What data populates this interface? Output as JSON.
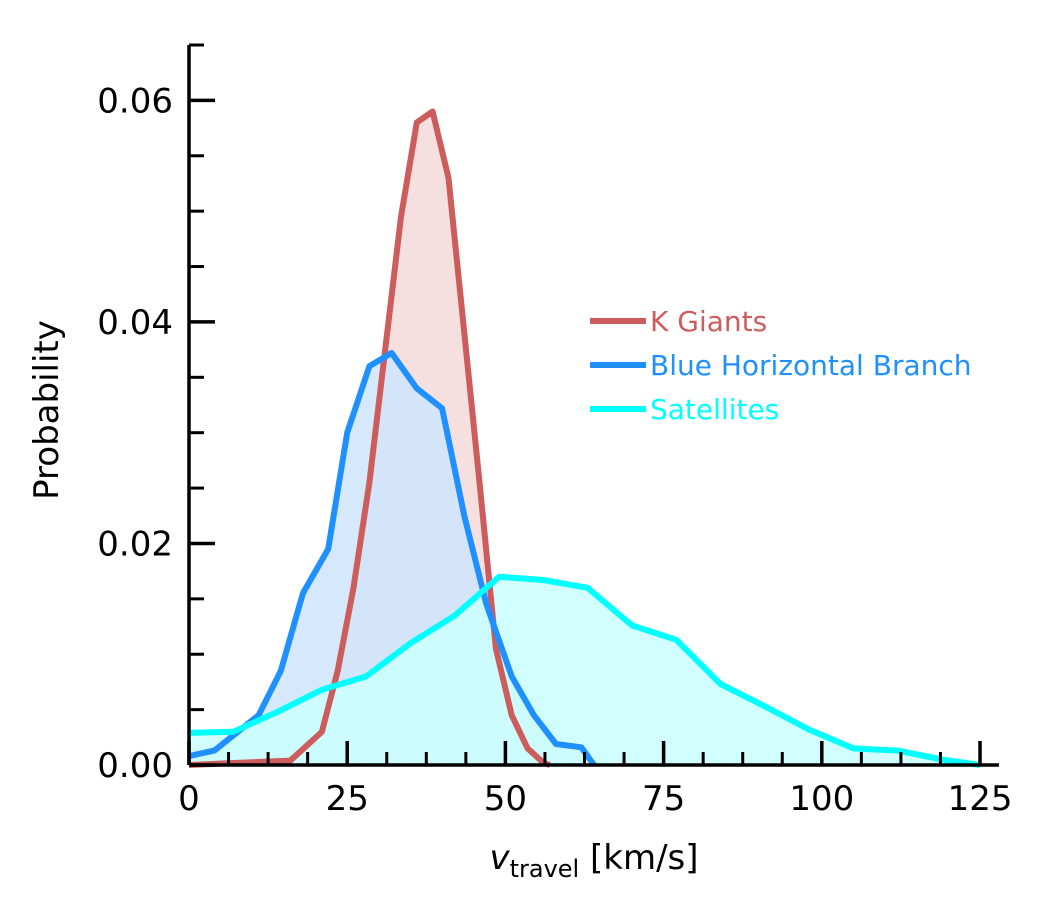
{
  "chart_data": {
    "type": "area",
    "title": "",
    "xlabel_symbol": "v",
    "xlabel_subscript": "travel",
    "xlabel_unit": " [km/s]",
    "ylabel": "Probability",
    "xlim": [
      0,
      128
    ],
    "ylim": [
      0,
      0.065
    ],
    "x_ticks": [
      0,
      25,
      50,
      75,
      100,
      125
    ],
    "x_tick_labels": [
      "0",
      "25",
      "50",
      "75",
      "100",
      "125"
    ],
    "x_minor_ticks": [
      6.25,
      12.5,
      18.75,
      31.25,
      37.5,
      43.75,
      56.25,
      62.5,
      68.75,
      81.25,
      87.5,
      93.75,
      106.25,
      112.5,
      118.75
    ],
    "y_ticks": [
      0,
      0.02,
      0.04,
      0.06
    ],
    "y_tick_labels": [
      "0.00",
      "0.02",
      "0.04",
      "0.06"
    ],
    "y_minor_ticks": [
      0.005,
      0.01,
      0.015,
      0.025,
      0.03,
      0.035,
      0.045,
      0.05,
      0.055,
      0.065
    ],
    "grid": false,
    "legend_position": "right",
    "series": [
      {
        "name": "K Giants",
        "color": "#cd5c5c",
        "fill": "#f5dcdc",
        "x": [
          0,
          8,
          16,
          21,
          23.5,
          26,
          28.5,
          31,
          33.5,
          36,
          38.5,
          41,
          43.5,
          46,
          48.5,
          51,
          53.5,
          56,
          57
        ],
        "y": [
          0,
          0.0002,
          0.0004,
          0.003,
          0.0085,
          0.016,
          0.0255,
          0.0375,
          0.0495,
          0.058,
          0.059,
          0.053,
          0.039,
          0.025,
          0.0105,
          0.0045,
          0.0015,
          0.0002,
          0
        ]
      },
      {
        "name": "Blue Horizontal Branch",
        "color": "#1e90ff",
        "fill": "#d2e6fc",
        "x": [
          0,
          4,
          11,
          14.5,
          18,
          22,
          25,
          28.5,
          32,
          36,
          40,
          43.5,
          47,
          51,
          54.5,
          58,
          62,
          64
        ],
        "y": [
          0.0008,
          0.0013,
          0.0045,
          0.0085,
          0.0155,
          0.0195,
          0.03,
          0.036,
          0.0372,
          0.034,
          0.0322,
          0.0225,
          0.0145,
          0.008,
          0.0045,
          0.0019,
          0.0016,
          0
        ]
      },
      {
        "name": "Satellites",
        "color": "#00ffff",
        "fill": "#ccfefe",
        "x": [
          0,
          7,
          14,
          21,
          28,
          35,
          42,
          49,
          56,
          63,
          70,
          77,
          84,
          91,
          98,
          105,
          112,
          119,
          125
        ],
        "y": [
          0.0029,
          0.003,
          0.0048,
          0.0068,
          0.008,
          0.011,
          0.0135,
          0.017,
          0.0167,
          0.016,
          0.0126,
          0.0113,
          0.0073,
          0.0053,
          0.0032,
          0.0015,
          0.0013,
          0.0005,
          0
        ]
      }
    ]
  }
}
